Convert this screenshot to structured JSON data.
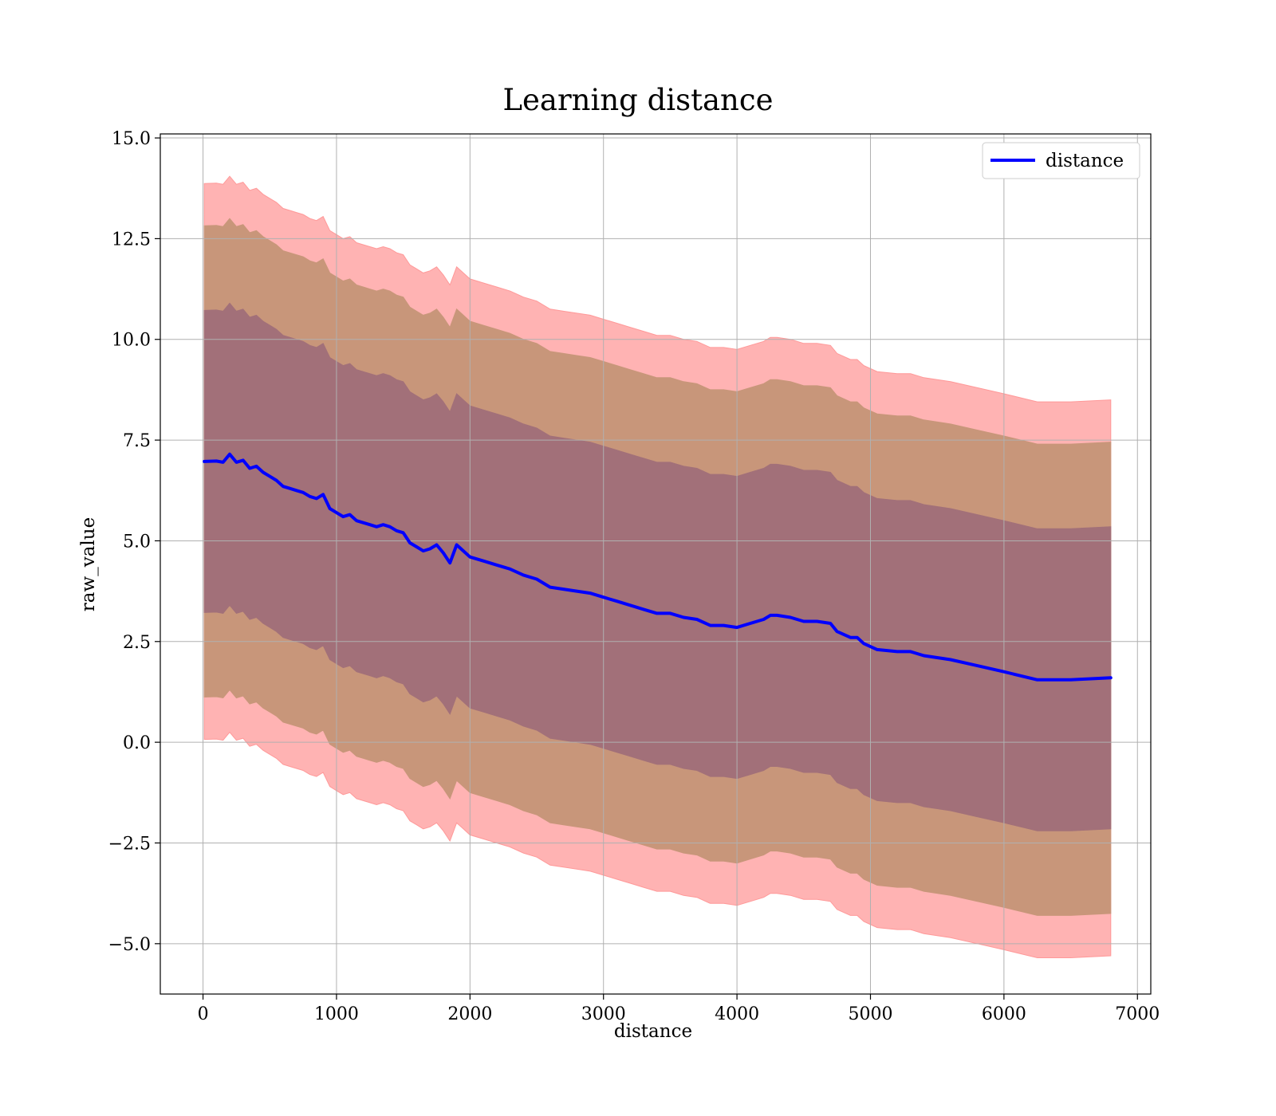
{
  "chart_data": {
    "type": "line",
    "title": "Learning distance",
    "xlabel": "distance",
    "ylabel": "raw_value",
    "xlim": [
      -320,
      7100
    ],
    "ylim": [
      -6.25,
      15.1
    ],
    "xticks": [
      0,
      1000,
      2000,
      3000,
      4000,
      5000,
      6000,
      7000
    ],
    "xtick_labels": [
      "0",
      "1000",
      "2000",
      "3000",
      "4000",
      "5000",
      "6000",
      "7000"
    ],
    "yticks": [
      -5.0,
      -2.5,
      0.0,
      2.5,
      5.0,
      7.5,
      10.0,
      12.5,
      15.0
    ],
    "ytick_labels": [
      "−5.0",
      "−2.5",
      "0.0",
      "2.5",
      "5.0",
      "7.5",
      "10.0",
      "12.5",
      "15.0"
    ],
    "grid": true,
    "legend": {
      "placement": "top-right",
      "entries": [
        "distance"
      ]
    },
    "series": [
      {
        "name": "distance",
        "color": "#0000ff",
        "x": [
          10,
          100,
          150,
          200,
          250,
          300,
          350,
          400,
          450,
          500,
          550,
          600,
          650,
          700,
          750,
          800,
          850,
          900,
          950,
          1000,
          1050,
          1100,
          1150,
          1200,
          1250,
          1300,
          1350,
          1400,
          1450,
          1500,
          1550,
          1600,
          1650,
          1700,
          1750,
          1800,
          1850,
          1900,
          1950,
          2000,
          2100,
          2200,
          2300,
          2400,
          2500,
          2600,
          2700,
          2800,
          2900,
          3000,
          3100,
          3200,
          3300,
          3400,
          3500,
          3600,
          3700,
          3800,
          3900,
          4000,
          4100,
          4200,
          4250,
          4300,
          4400,
          4500,
          4600,
          4700,
          4750,
          4850,
          4900,
          4950,
          5050,
          5200,
          5300,
          5400,
          5600,
          5800,
          6000,
          6250,
          6500,
          6800
        ],
        "values": [
          6.97,
          6.98,
          6.95,
          7.15,
          6.95,
          7.0,
          6.8,
          6.85,
          6.7,
          6.6,
          6.5,
          6.35,
          6.3,
          6.25,
          6.2,
          6.1,
          6.05,
          6.15,
          5.8,
          5.7,
          5.6,
          5.65,
          5.5,
          5.45,
          5.4,
          5.35,
          5.4,
          5.35,
          5.25,
          5.2,
          4.95,
          4.85,
          4.75,
          4.8,
          4.9,
          4.7,
          4.45,
          4.9,
          4.75,
          4.6,
          4.5,
          4.4,
          4.3,
          4.15,
          4.05,
          3.85,
          3.8,
          3.75,
          3.7,
          3.6,
          3.5,
          3.4,
          3.3,
          3.2,
          3.2,
          3.1,
          3.05,
          2.9,
          2.9,
          2.85,
          2.95,
          3.05,
          3.15,
          3.15,
          3.1,
          3.0,
          3.0,
          2.95,
          2.75,
          2.6,
          2.6,
          2.45,
          2.3,
          2.25,
          2.25,
          2.15,
          2.05,
          1.9,
          1.75,
          1.55,
          1.55,
          1.6
        ]
      }
    ],
    "bands": [
      {
        "fill": "#ff9999",
        "opacity": 0.75,
        "lower_offset": -6.9,
        "upper_offset": 6.9
      },
      {
        "fill": "#c8967a",
        "opacity": 1.0,
        "lower_offset": -5.85,
        "upper_offset": 5.85
      },
      {
        "fill": "#a27079",
        "opacity": 1.0,
        "lower_offset": -3.75,
        "upper_offset": 3.75
      }
    ]
  }
}
